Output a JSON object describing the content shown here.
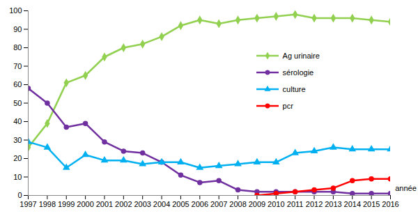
{
  "chart_data": {
    "type": "line",
    "x": [
      1997,
      1998,
      1999,
      2000,
      2001,
      2002,
      2003,
      2004,
      2005,
      2006,
      2007,
      2008,
      2009,
      2010,
      2011,
      2012,
      2013,
      2014,
      2015,
      2016
    ],
    "x_label": "année",
    "xlim": [
      1997,
      2016
    ],
    "xticks": [
      1997,
      1998,
      1999,
      2000,
      2001,
      2002,
      2003,
      2004,
      2005,
      2006,
      2007,
      2008,
      2009,
      2010,
      2011,
      2012,
      2013,
      2014,
      2015,
      2016
    ],
    "ylim": [
      0,
      100
    ],
    "yticks": [
      0,
      10,
      20,
      30,
      40,
      50,
      60,
      70,
      80,
      90,
      100
    ],
    "grid": false,
    "legend": "right",
    "series": [
      {
        "name": "Ag urinaire",
        "color": "#92D050",
        "marker": "diamond",
        "values": [
          26,
          39,
          61,
          65,
          75,
          80,
          82,
          86,
          92,
          95,
          93,
          95,
          96,
          97,
          98,
          96,
          96,
          96,
          95,
          94
        ]
      },
      {
        "name": "sérologie",
        "color": "#7030A0",
        "marker": "circle",
        "values": [
          58,
          50,
          37,
          39,
          29,
          24,
          23,
          18,
          11,
          7,
          8,
          3,
          2,
          2,
          2,
          2,
          2,
          1,
          1,
          1
        ]
      },
      {
        "name": "culture",
        "color": "#00B0F0",
        "marker": "triangle",
        "values": [
          29,
          26,
          15,
          22,
          19,
          19,
          17,
          18,
          18,
          15,
          16,
          17,
          18,
          18,
          23,
          24,
          26,
          25,
          25,
          25
        ]
      },
      {
        "name": "pcr",
        "color": "#FF0000",
        "marker": "circle",
        "values": [
          null,
          null,
          null,
          null,
          null,
          null,
          null,
          null,
          null,
          null,
          null,
          null,
          0,
          1,
          2,
          3,
          4,
          8,
          9,
          9
        ]
      }
    ]
  }
}
